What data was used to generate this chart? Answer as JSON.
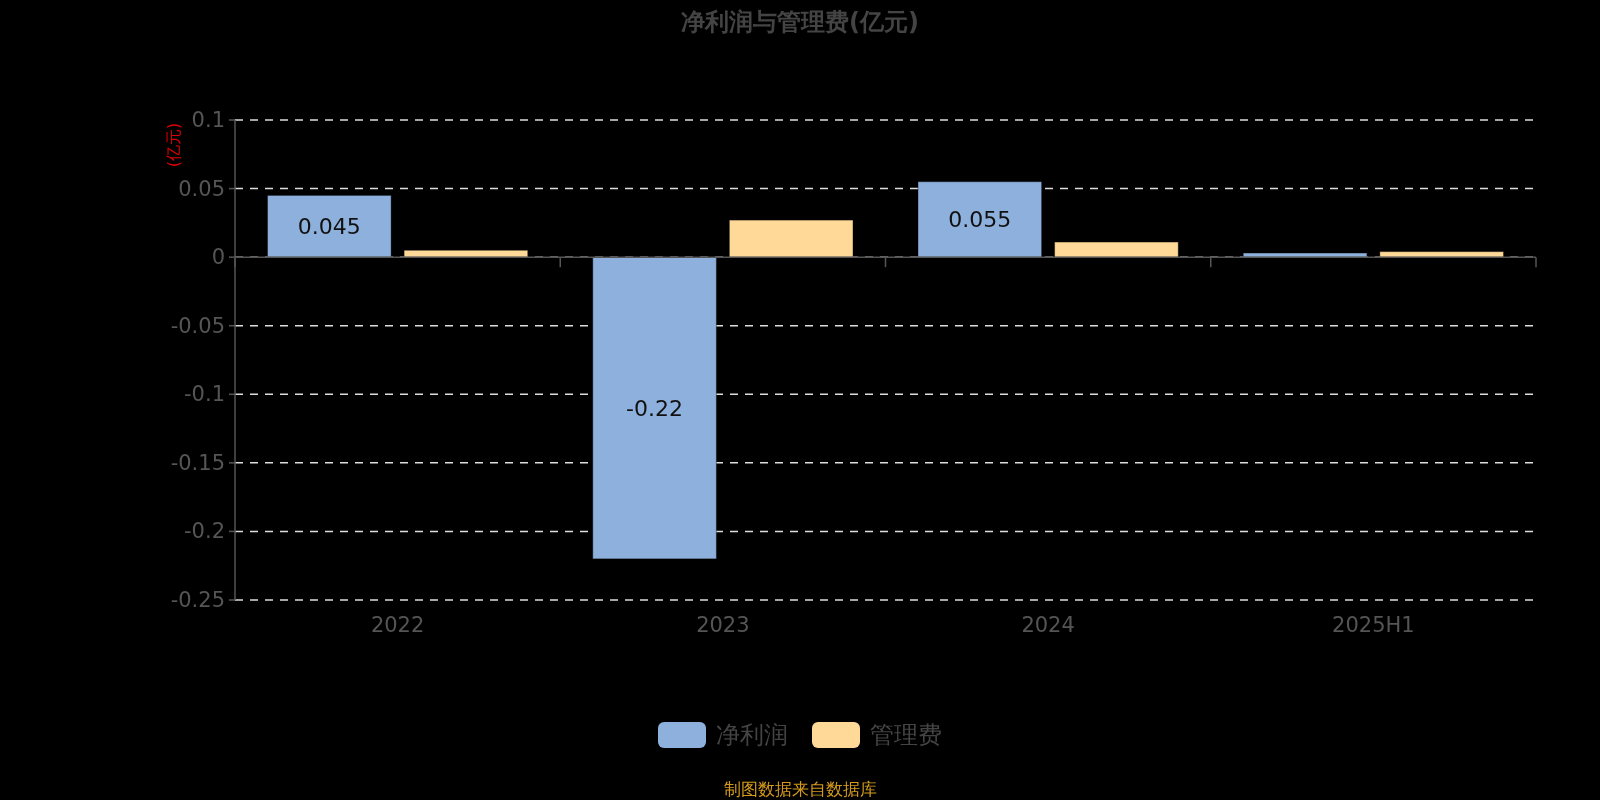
{
  "chart_data": {
    "type": "bar",
    "title": "净利润与管理费(亿元)",
    "ylabel": "(亿元)",
    "categories": [
      "2022",
      "2023",
      "2024",
      "2025H1"
    ],
    "series": [
      {
        "name": "净利润",
        "color": "#8eb0dc",
        "values": [
          0.045,
          -0.22,
          0.055,
          0.003
        ],
        "value_labels": [
          "0.045",
          "-0.22",
          "0.055",
          null
        ]
      },
      {
        "name": "管理费",
        "color": "#ffd998",
        "values": [
          0.005,
          0.027,
          0.011,
          0.004
        ]
      }
    ],
    "ylim": [
      -0.25,
      0.1
    ],
    "yticks": [
      -0.25,
      -0.2,
      -0.15,
      -0.1,
      -0.05,
      0,
      0.05,
      0.1
    ],
    "grid": "y",
    "legend": "bottom",
    "annotations": [
      "制图数据来自数据库"
    ]
  }
}
